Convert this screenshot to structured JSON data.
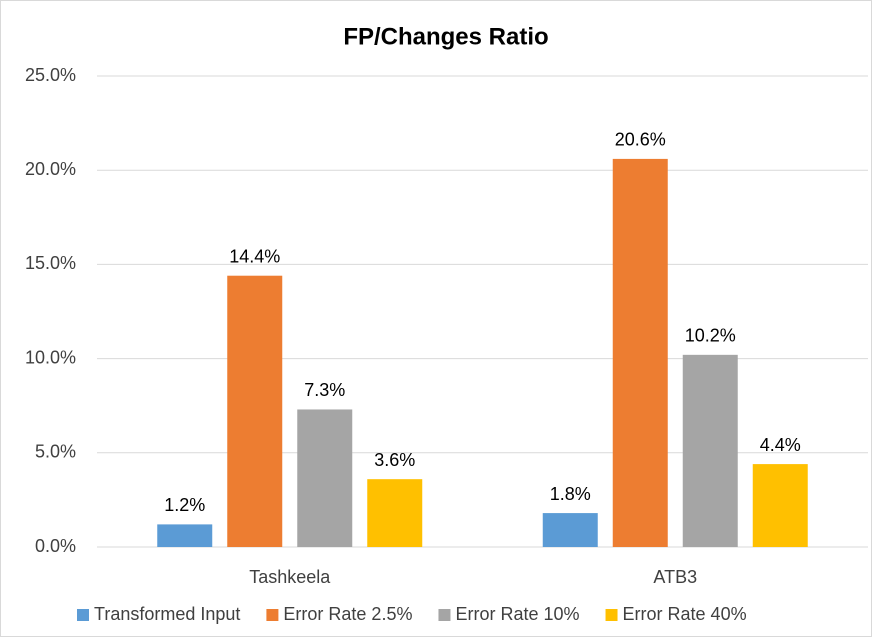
{
  "chart_data": {
    "type": "bar",
    "title": "FP/Changes Ratio",
    "categories": [
      "Tashkeela",
      "ATB3"
    ],
    "series": [
      {
        "name": "Transformed Input",
        "color": "#5b9bd5",
        "values": [
          1.2,
          1.8
        ],
        "value_labels": [
          "1.2%",
          "1.8%"
        ]
      },
      {
        "name": "Error Rate 2.5%",
        "color": "#ed7d31",
        "values": [
          14.4,
          20.6
        ],
        "value_labels": [
          "14.4%",
          "20.6%"
        ]
      },
      {
        "name": "Error Rate 10%",
        "color": "#a5a5a5",
        "values": [
          7.3,
          10.2
        ],
        "value_labels": [
          "7.3%",
          "10.2%"
        ]
      },
      {
        "name": "Error Rate 40%",
        "color": "#ffc000",
        "values": [
          3.6,
          4.4
        ],
        "value_labels": [
          "3.6%",
          "4.4%"
        ]
      }
    ],
    "ylim": [
      0,
      25
    ],
    "yticks": [
      {
        "value": 0,
        "label": "0.0%"
      },
      {
        "value": 5,
        "label": "5.0%"
      },
      {
        "value": 10,
        "label": "10.0%"
      },
      {
        "value": 15,
        "label": "15.0%"
      },
      {
        "value": 20,
        "label": "20.0%"
      },
      {
        "value": 25,
        "label": "25.0%"
      }
    ],
    "grid": true,
    "legend": "bottom"
  }
}
